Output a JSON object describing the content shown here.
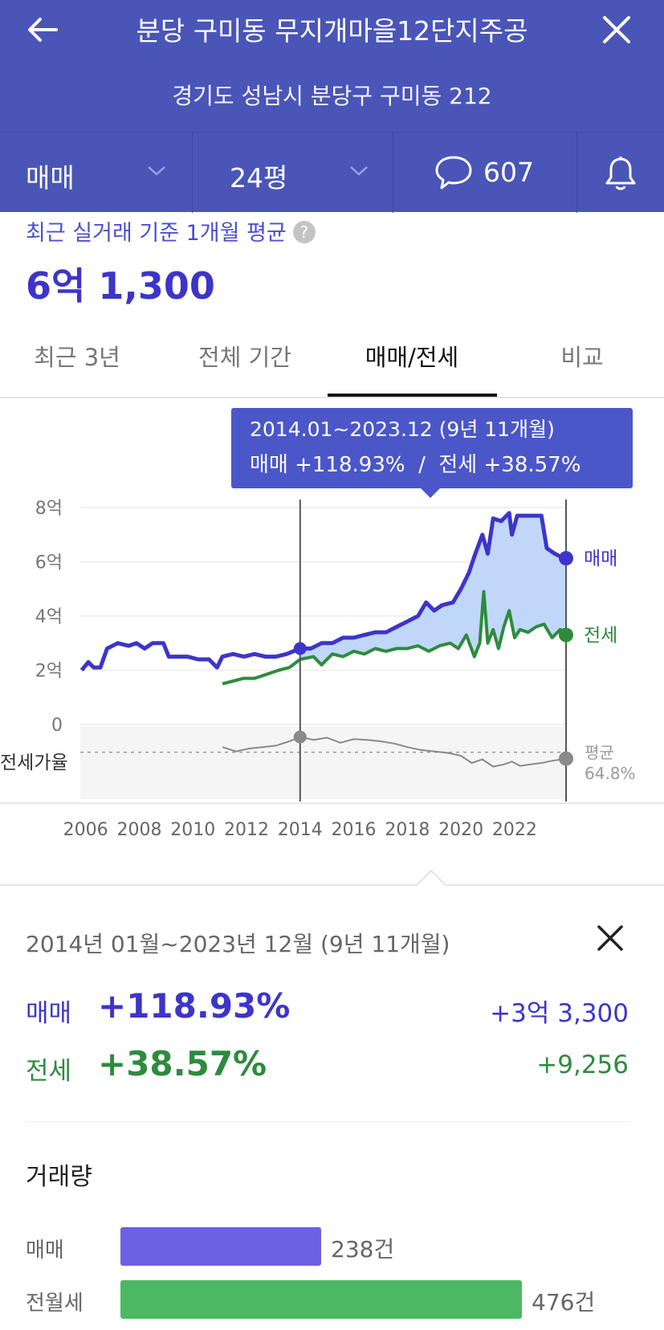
{
  "header": {
    "title": "분당 구미동 무지개마을12단지주공",
    "address": "경기도 성남시 분당구 구미동 212",
    "back_icon": "arrow-left-icon",
    "close_icon": "close-icon"
  },
  "filters": {
    "trade_type": "매매",
    "area": "24평",
    "comment_count": "607",
    "bell_icon": "bell-icon"
  },
  "summary": {
    "label": "최근 실거래 기준 1개월 평균",
    "help": "?",
    "price": "6억 1,300"
  },
  "tabs": [
    {
      "label": "최근 3년",
      "active": false
    },
    {
      "label": "전체 기간",
      "active": false
    },
    {
      "label": "매매/전세",
      "active": true
    },
    {
      "label": "비교",
      "active": false
    }
  ],
  "colors": {
    "header_bg": "#4a55b8",
    "sale": "#3d35c9",
    "jeonse": "#2e8b3e",
    "fill": "#b9d3fa",
    "tooltip": "#4b57c8"
  },
  "chart_data": {
    "type": "line",
    "x_range": [
      2005.8,
      2023.95
    ],
    "y_range": [
      0,
      8
    ],
    "y_ticks": [
      "8억",
      "6억",
      "4억",
      "2억",
      "0"
    ],
    "x_ticks": [
      "2006",
      "2008",
      "2010",
      "2012",
      "2014",
      "2016",
      "2018",
      "2020",
      "2022"
    ],
    "tooltip": {
      "line1": "2014.01~2023.12 (9년 11개월)",
      "line2": "매매 +118.93%  /  전세 +38.57%"
    },
    "selection": {
      "start": 2014.0,
      "end": 2023.92
    },
    "series": [
      {
        "name": "매매",
        "points": [
          [
            2005.85,
            2.0
          ],
          [
            2006.1,
            2.3
          ],
          [
            2006.3,
            2.1
          ],
          [
            2006.55,
            2.1
          ],
          [
            2006.8,
            2.8
          ],
          [
            2007.2,
            3.0
          ],
          [
            2007.6,
            2.9
          ],
          [
            2007.9,
            3.0
          ],
          [
            2008.2,
            2.8
          ],
          [
            2008.5,
            3.0
          ],
          [
            2008.9,
            3.0
          ],
          [
            2009.1,
            2.5
          ],
          [
            2009.5,
            2.5
          ],
          [
            2009.8,
            2.5
          ],
          [
            2010.2,
            2.4
          ],
          [
            2010.6,
            2.4
          ],
          [
            2010.9,
            2.1
          ],
          [
            2011.1,
            2.5
          ],
          [
            2011.5,
            2.6
          ],
          [
            2011.9,
            2.5
          ],
          [
            2012.3,
            2.6
          ],
          [
            2012.7,
            2.5
          ],
          [
            2013.1,
            2.5
          ],
          [
            2013.5,
            2.6
          ],
          [
            2014.0,
            2.8
          ],
          [
            2014.4,
            2.8
          ],
          [
            2014.8,
            3.0
          ],
          [
            2015.2,
            3.0
          ],
          [
            2015.6,
            3.2
          ],
          [
            2016.0,
            3.2
          ],
          [
            2016.4,
            3.3
          ],
          [
            2016.8,
            3.4
          ],
          [
            2017.2,
            3.4
          ],
          [
            2017.6,
            3.6
          ],
          [
            2018.0,
            3.8
          ],
          [
            2018.4,
            4.0
          ],
          [
            2018.7,
            4.5
          ],
          [
            2019.0,
            4.2
          ],
          [
            2019.3,
            4.4
          ],
          [
            2019.7,
            4.5
          ],
          [
            2020.0,
            5.0
          ],
          [
            2020.3,
            5.6
          ],
          [
            2020.5,
            6.2
          ],
          [
            2020.8,
            7.0
          ],
          [
            2021.0,
            6.3
          ],
          [
            2021.2,
            7.6
          ],
          [
            2021.5,
            7.5
          ],
          [
            2021.8,
            7.8
          ],
          [
            2021.9,
            7.0
          ],
          [
            2022.1,
            7.7
          ],
          [
            2022.5,
            7.7
          ],
          [
            2022.8,
            7.7
          ],
          [
            2023.0,
            7.7
          ],
          [
            2023.2,
            6.5
          ],
          [
            2023.5,
            6.3
          ],
          [
            2023.7,
            6.2
          ],
          [
            2023.92,
            6.13
          ]
        ]
      },
      {
        "name": "전세",
        "points": [
          [
            2011.1,
            1.5
          ],
          [
            2011.5,
            1.6
          ],
          [
            2011.9,
            1.7
          ],
          [
            2012.3,
            1.7
          ],
          [
            2012.6,
            1.8
          ],
          [
            2012.9,
            1.9
          ],
          [
            2013.2,
            2.0
          ],
          [
            2013.6,
            2.1
          ],
          [
            2014.0,
            2.4
          ],
          [
            2014.5,
            2.5
          ],
          [
            2014.8,
            2.2
          ],
          [
            2015.2,
            2.6
          ],
          [
            2015.6,
            2.5
          ],
          [
            2016.0,
            2.7
          ],
          [
            2016.4,
            2.6
          ],
          [
            2016.8,
            2.8
          ],
          [
            2017.2,
            2.7
          ],
          [
            2017.6,
            2.8
          ],
          [
            2018.0,
            2.8
          ],
          [
            2018.4,
            2.9
          ],
          [
            2018.8,
            2.7
          ],
          [
            2019.2,
            2.9
          ],
          [
            2019.6,
            3.0
          ],
          [
            2019.9,
            2.8
          ],
          [
            2020.2,
            3.3
          ],
          [
            2020.5,
            2.5
          ],
          [
            2020.7,
            3.0
          ],
          [
            2020.85,
            4.9
          ],
          [
            2021.0,
            3.0
          ],
          [
            2021.2,
            3.5
          ],
          [
            2021.4,
            2.8
          ],
          [
            2021.6,
            3.6
          ],
          [
            2021.8,
            4.2
          ],
          [
            2022.0,
            3.2
          ],
          [
            2022.2,
            3.5
          ],
          [
            2022.5,
            3.4
          ],
          [
            2022.8,
            3.6
          ],
          [
            2023.1,
            3.7
          ],
          [
            2023.4,
            3.2
          ],
          [
            2023.7,
            3.5
          ],
          [
            2023.92,
            3.3
          ]
        ]
      }
    ],
    "ratio": {
      "label": "전세가율",
      "avg_label": "평균",
      "avg_value": "64.8%",
      "points": [
        [
          2011.1,
          0.72
        ],
        [
          2011.6,
          0.66
        ],
        [
          2012.1,
          0.7
        ],
        [
          2012.6,
          0.72
        ],
        [
          2013.1,
          0.74
        ],
        [
          2013.6,
          0.8
        ],
        [
          2014.0,
          0.86
        ],
        [
          2014.5,
          0.82
        ],
        [
          2015.0,
          0.85
        ],
        [
          2015.5,
          0.78
        ],
        [
          2016.0,
          0.83
        ],
        [
          2016.5,
          0.82
        ],
        [
          2017.0,
          0.8
        ],
        [
          2017.5,
          0.77
        ],
        [
          2018.0,
          0.72
        ],
        [
          2018.5,
          0.68
        ],
        [
          2019.0,
          0.66
        ],
        [
          2019.5,
          0.64
        ],
        [
          2020.0,
          0.6
        ],
        [
          2020.4,
          0.5
        ],
        [
          2020.8,
          0.55
        ],
        [
          2021.2,
          0.45
        ],
        [
          2021.6,
          0.48
        ],
        [
          2021.9,
          0.52
        ],
        [
          2022.2,
          0.46
        ],
        [
          2022.6,
          0.48
        ],
        [
          2023.0,
          0.5
        ],
        [
          2023.4,
          0.53
        ],
        [
          2023.92,
          0.56
        ]
      ],
      "avg_ratio": 0.648
    },
    "series_labels": {
      "sale": "매매",
      "jeonse": "전세"
    }
  },
  "range_detail": {
    "period": "2014년 01월~2023년 12월 (9년 11개월)",
    "sale_label": "매매",
    "sale_pct": "+118.93%",
    "sale_amount": "+3억 3,300",
    "jeonse_label": "전세",
    "jeonse_pct": "+38.57%",
    "jeonse_amount": "+9,256"
  },
  "volume": {
    "title": "거래량",
    "max": 476,
    "items": [
      {
        "label": "매매",
        "count": 238,
        "text": "238건",
        "color": "#6b61e3"
      },
      {
        "label": "전월세",
        "count": 476,
        "text": "476건",
        "color": "#4cb863"
      }
    ]
  }
}
